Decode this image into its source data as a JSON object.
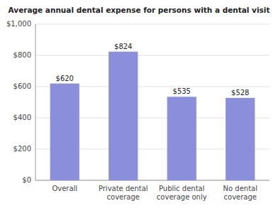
{
  "chart_data": {
    "type": "bar",
    "title": "Average annual dental expense for persons with a dental visit",
    "categories": [
      "Overall",
      "Private dental\ncoverage",
      "Public dental\ncoverage only",
      "No dental\ncoverage"
    ],
    "values": [
      620,
      824,
      535,
      528
    ],
    "value_labels": [
      "$620",
      "$824",
      "$535",
      "$528"
    ],
    "color": "#8b8fdb",
    "ylim": [
      0,
      1000
    ],
    "yticks": [
      {
        "value": 0,
        "label": "$0"
      },
      {
        "value": 200,
        "label": "$200"
      },
      {
        "value": 400,
        "label": "$400"
      },
      {
        "value": 600,
        "label": "$600"
      },
      {
        "value": 800,
        "label": "$800"
      },
      {
        "value": 1000,
        "label": "$1,000"
      }
    ],
    "grid": true,
    "data_labels": true
  }
}
